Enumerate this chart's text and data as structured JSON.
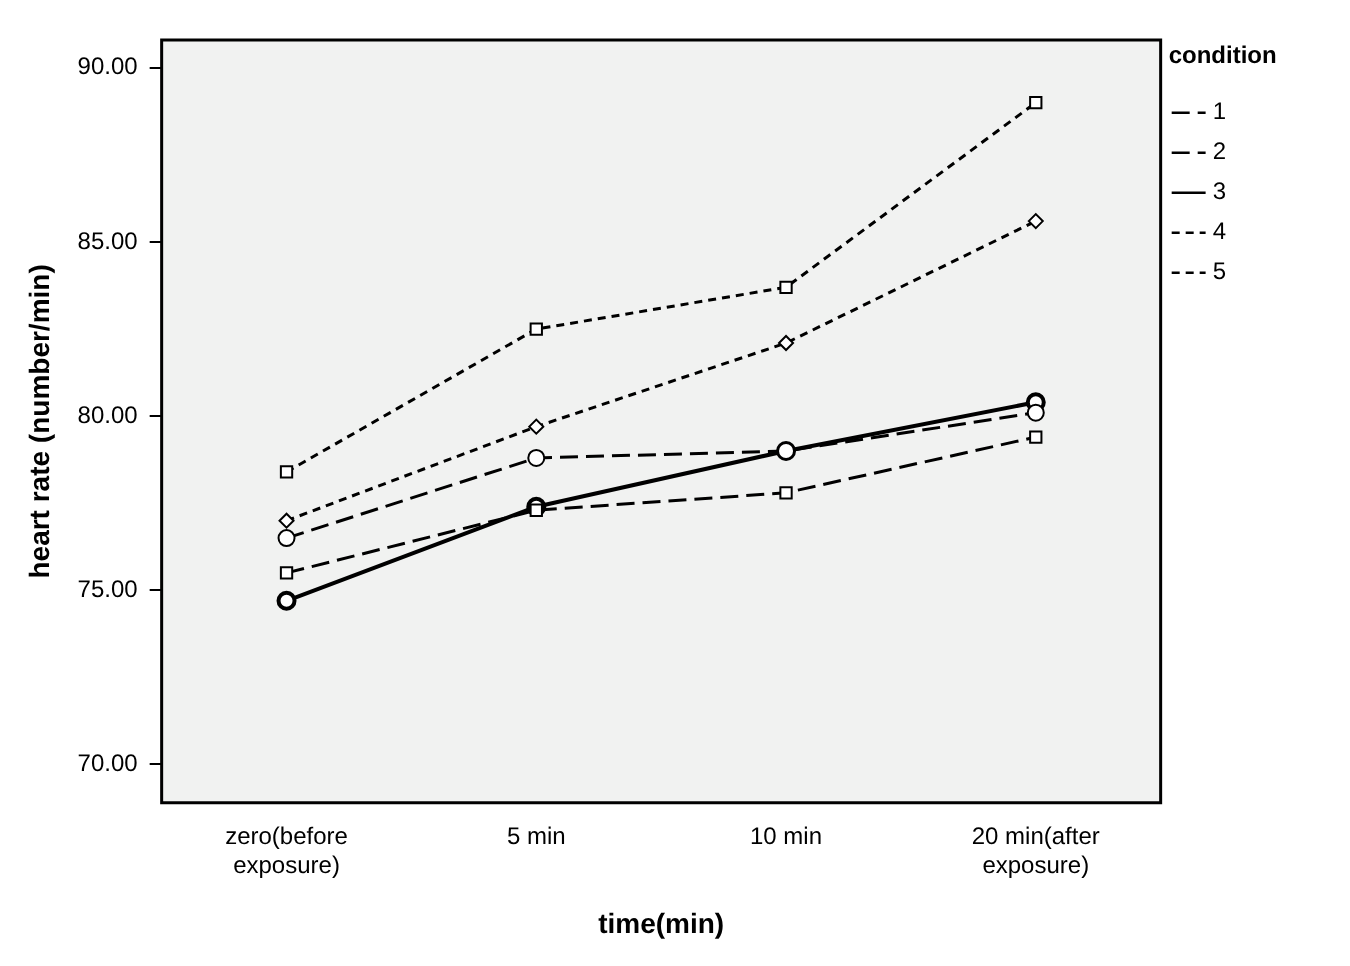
{
  "chart_data": {
    "type": "line",
    "xlabel": "time(min)",
    "ylabel": "heart rate (number/min)",
    "legend_title": "condition",
    "legend": "top right",
    "grid": false,
    "categories": [
      "zero(before exposure)",
      "5 min",
      "10 min",
      "20 min(after exposure)"
    ],
    "ylim": [
      68.9,
      90.8
    ],
    "yticks": [
      {
        "value": 70,
        "label": "70.00"
      },
      {
        "value": 75,
        "label": "75.00"
      },
      {
        "value": 80,
        "label": "80.00"
      },
      {
        "value": 85,
        "label": "85.00"
      },
      {
        "value": 90,
        "label": "90.00"
      }
    ],
    "series": [
      {
        "name": "1",
        "color": "#000000",
        "line_style": "dashed",
        "marker": "circle",
        "values": [
          76.5,
          78.8,
          79.0,
          80.1
        ]
      },
      {
        "name": "2",
        "color": "#000000",
        "line_style": "dashed",
        "marker": "square",
        "values": [
          75.5,
          77.3,
          77.8,
          79.4
        ]
      },
      {
        "name": "3",
        "color": "#000000",
        "line_style": "solid",
        "marker": "circle",
        "values": [
          74.7,
          77.4,
          79.0,
          80.4
        ]
      },
      {
        "name": "4",
        "color": "#000000",
        "line_style": "dotted",
        "marker": "diamond",
        "values": [
          77.0,
          79.7,
          82.1,
          85.6
        ]
      },
      {
        "name": "5",
        "color": "#000000",
        "line_style": "dotted",
        "marker": "square",
        "values": [
          78.4,
          82.5,
          83.7,
          89.0
        ]
      }
    ]
  }
}
